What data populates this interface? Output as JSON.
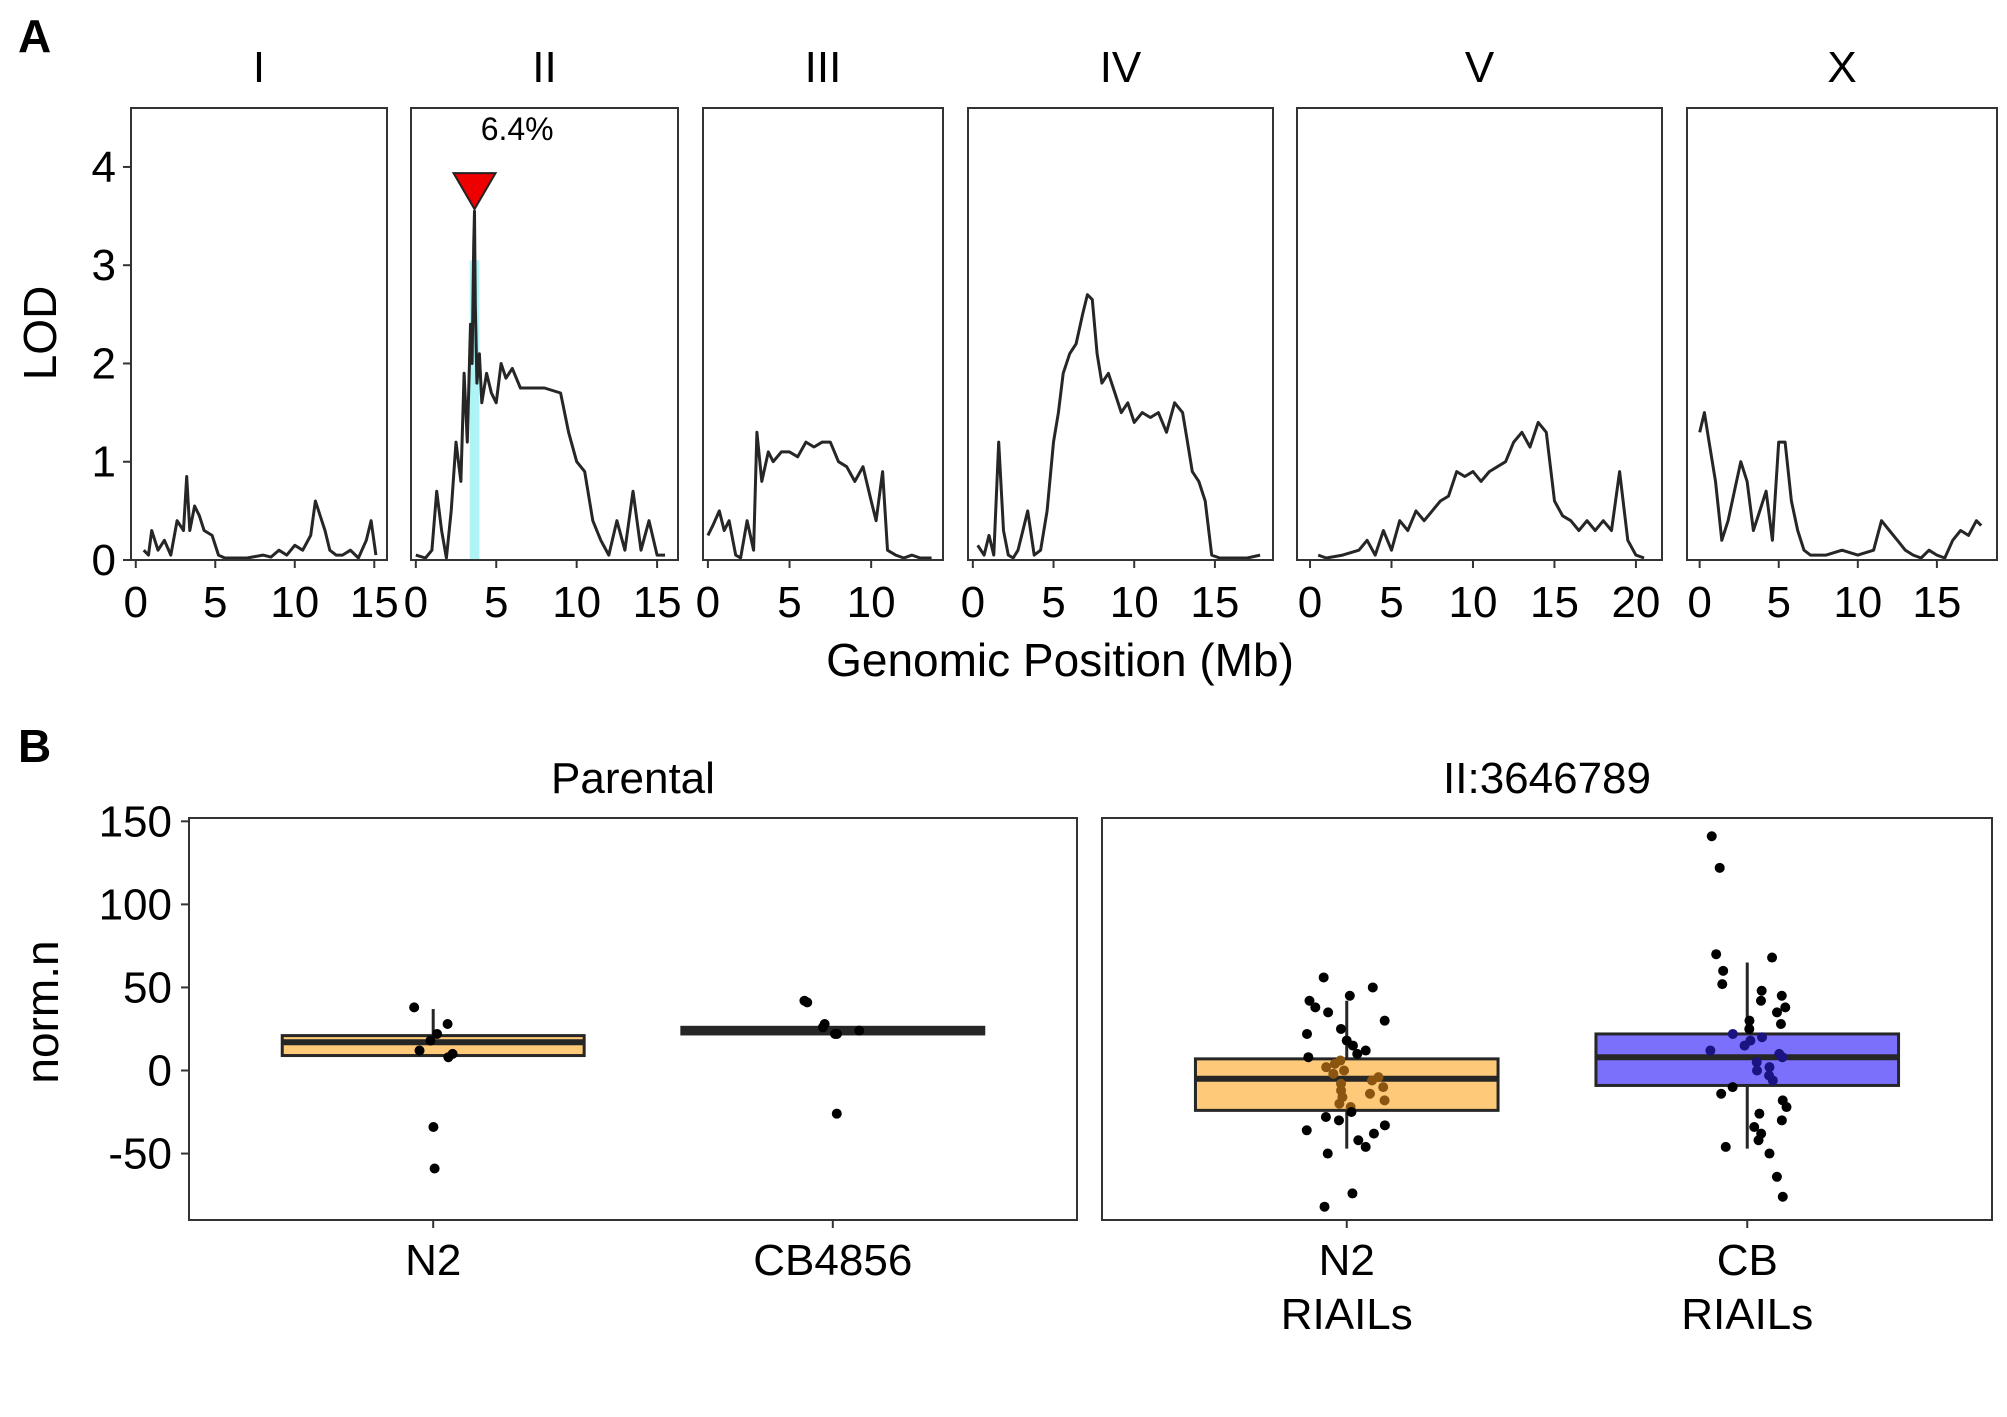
{
  "panel_tags": {
    "a": "A",
    "b": "B"
  },
  "chart_data": [
    {
      "type": "line",
      "panel": "A",
      "ylabel": "LOD",
      "xlabel": "Genomic Position (Mb)",
      "ylim": [
        0,
        4.6
      ],
      "yticks": [
        0,
        1,
        2,
        3,
        4
      ],
      "grid": false,
      "line_color": "#262626",
      "facets": [
        {
          "name": "I",
          "xlim": [
            -0.3,
            15.8
          ],
          "xticks": [
            0,
            5,
            10,
            15
          ],
          "tick_labels": [
            "0",
            "5",
            "10",
            "15"
          ],
          "x": [
            0.5,
            0.8,
            1.0,
            1.4,
            1.8,
            2.2,
            2.6,
            3.0,
            3.2,
            3.4,
            3.7,
            4.0,
            4.3,
            4.8,
            5.2,
            5.6,
            6.0,
            7.0,
            8.0,
            8.5,
            9.0,
            9.5,
            10.0,
            10.5,
            11.0,
            11.3,
            11.6,
            11.9,
            12.2,
            12.6,
            13.0,
            13.5,
            14.0,
            14.5,
            14.8,
            15.1
          ],
          "y": [
            0.1,
            0.05,
            0.3,
            0.1,
            0.2,
            0.05,
            0.4,
            0.3,
            0.85,
            0.3,
            0.55,
            0.45,
            0.3,
            0.25,
            0.05,
            0.02,
            0.02,
            0.02,
            0.05,
            0.03,
            0.1,
            0.05,
            0.15,
            0.1,
            0.25,
            0.6,
            0.45,
            0.3,
            0.1,
            0.05,
            0.05,
            0.1,
            0.02,
            0.2,
            0.4,
            0.05
          ]
        },
        {
          "name": "II",
          "xlim": [
            -0.3,
            16.3
          ],
          "xticks": [
            0,
            5,
            10,
            15
          ],
          "tick_labels": [
            "0",
            "5",
            "10",
            "15"
          ],
          "x": [
            0.0,
            0.6,
            1.0,
            1.3,
            1.6,
            1.9,
            2.2,
            2.5,
            2.8,
            3.0,
            3.2,
            3.4,
            3.5,
            3.6,
            3.65,
            3.7,
            3.8,
            3.95,
            4.1,
            4.4,
            4.7,
            5.0,
            5.3,
            5.6,
            6.0,
            6.5,
            7.0,
            7.5,
            8.0,
            9.0,
            9.5,
            10.0,
            10.5,
            11.0,
            11.5,
            12.0,
            12.5,
            13.0,
            13.5,
            14.0,
            14.5,
            15.0,
            15.5
          ],
          "y": [
            0.05,
            0.02,
            0.1,
            0.7,
            0.3,
            0.02,
            0.5,
            1.2,
            0.8,
            1.9,
            1.2,
            2.4,
            2.0,
            3.2,
            3.55,
            2.6,
            1.8,
            2.1,
            1.6,
            1.9,
            1.7,
            1.6,
            2.0,
            1.85,
            1.95,
            1.75,
            1.75,
            1.75,
            1.75,
            1.7,
            1.3,
            1.0,
            0.9,
            0.4,
            0.2,
            0.05,
            0.4,
            0.1,
            0.7,
            0.1,
            0.4,
            0.05,
            0.05
          ]
        },
        {
          "name": "III",
          "xlim": [
            -0.3,
            14.4
          ],
          "xticks": [
            0,
            5,
            10
          ],
          "tick_labels": [
            "0",
            "5",
            "10"
          ],
          "x": [
            0.0,
            0.3,
            0.7,
            1.0,
            1.3,
            1.7,
            2.0,
            2.4,
            2.8,
            3.0,
            3.3,
            3.7,
            4.0,
            4.5,
            5.0,
            5.5,
            6.0,
            6.5,
            7.0,
            7.5,
            8.0,
            8.5,
            9.0,
            9.5,
            10.0,
            10.3,
            10.7,
            11.0,
            11.5,
            12.0,
            12.5,
            13.0,
            13.7
          ],
          "y": [
            0.25,
            0.35,
            0.5,
            0.3,
            0.4,
            0.05,
            0.02,
            0.4,
            0.1,
            1.3,
            0.8,
            1.1,
            1.0,
            1.1,
            1.1,
            1.05,
            1.2,
            1.15,
            1.2,
            1.2,
            1.0,
            0.95,
            0.8,
            0.95,
            0.6,
            0.4,
            0.9,
            0.1,
            0.05,
            0.02,
            0.05,
            0.02,
            0.02
          ]
        },
        {
          "name": "IV",
          "xlim": [
            -0.3,
            18.6
          ],
          "xticks": [
            0,
            5,
            10,
            15
          ],
          "tick_labels": [
            "0",
            "5",
            "10",
            "15"
          ],
          "x": [
            0.3,
            0.7,
            1.0,
            1.3,
            1.6,
            1.9,
            2.2,
            2.5,
            2.8,
            3.1,
            3.4,
            3.8,
            4.2,
            4.6,
            5.0,
            5.3,
            5.6,
            6.0,
            6.4,
            6.8,
            7.1,
            7.4,
            7.7,
            8.0,
            8.4,
            8.8,
            9.2,
            9.6,
            10.0,
            10.5,
            11.0,
            11.5,
            12.0,
            12.5,
            13.0,
            13.3,
            13.6,
            14.0,
            14.4,
            14.8,
            15.3,
            16.0,
            17.0,
            17.8
          ],
          "y": [
            0.15,
            0.05,
            0.25,
            0.05,
            1.2,
            0.3,
            0.05,
            0.02,
            0.1,
            0.3,
            0.5,
            0.05,
            0.1,
            0.5,
            1.2,
            1.5,
            1.9,
            2.1,
            2.2,
            2.5,
            2.7,
            2.65,
            2.1,
            1.8,
            1.9,
            1.7,
            1.5,
            1.6,
            1.4,
            1.5,
            1.45,
            1.5,
            1.3,
            1.6,
            1.5,
            1.2,
            0.9,
            0.8,
            0.6,
            0.05,
            0.02,
            0.02,
            0.02,
            0.05
          ]
        },
        {
          "name": "V",
          "xlim": [
            -0.8,
            21.6
          ],
          "xticks": [
            0,
            5,
            10,
            15,
            20
          ],
          "tick_labels": [
            "0",
            "5",
            "10",
            "15",
            "20"
          ],
          "x": [
            0.5,
            1.0,
            2.0,
            3.0,
            3.5,
            4.0,
            4.5,
            5.0,
            5.5,
            6.0,
            6.5,
            7.0,
            7.5,
            8.0,
            8.5,
            9.0,
            9.5,
            10.0,
            10.5,
            11.0,
            11.5,
            12.0,
            12.5,
            13.0,
            13.5,
            14.0,
            14.5,
            15.0,
            15.5,
            16.0,
            16.5,
            17.0,
            17.5,
            18.0,
            18.5,
            19.0,
            19.5,
            20.0,
            20.5
          ],
          "y": [
            0.05,
            0.02,
            0.05,
            0.1,
            0.2,
            0.05,
            0.3,
            0.1,
            0.4,
            0.3,
            0.5,
            0.4,
            0.5,
            0.6,
            0.65,
            0.9,
            0.85,
            0.9,
            0.8,
            0.9,
            0.95,
            1.0,
            1.2,
            1.3,
            1.15,
            1.4,
            1.3,
            0.6,
            0.45,
            0.4,
            0.3,
            0.4,
            0.3,
            0.4,
            0.3,
            0.9,
            0.2,
            0.05,
            0.02
          ]
        },
        {
          "name": "X",
          "xlim": [
            -0.8,
            18.8
          ],
          "xticks": [
            0,
            5,
            10,
            15
          ],
          "tick_labels": [
            "0",
            "5",
            "10",
            "15"
          ],
          "x": [
            0.0,
            0.3,
            0.6,
            1.0,
            1.4,
            1.8,
            2.2,
            2.6,
            3.0,
            3.4,
            3.8,
            4.2,
            4.6,
            5.0,
            5.4,
            5.8,
            6.2,
            6.6,
            7.0,
            8.0,
            9.0,
            10.0,
            11.0,
            11.5,
            12.0,
            12.5,
            13.0,
            13.5,
            14.0,
            14.5,
            15.0,
            15.5,
            16.0,
            16.5,
            17.0,
            17.5,
            17.8
          ],
          "y": [
            1.3,
            1.5,
            1.2,
            0.8,
            0.2,
            0.4,
            0.7,
            1.0,
            0.8,
            0.3,
            0.5,
            0.7,
            0.2,
            1.2,
            1.2,
            0.6,
            0.3,
            0.1,
            0.05,
            0.05,
            0.1,
            0.05,
            0.1,
            0.4,
            0.3,
            0.2,
            0.1,
            0.05,
            0.02,
            0.1,
            0.05,
            0.02,
            0.2,
            0.3,
            0.25,
            0.4,
            0.35
          ]
        }
      ],
      "peak": {
        "facet": "II",
        "x": 3.65,
        "lod": 3.55,
        "label": "6.4%",
        "marker_color": "#ee0000",
        "interval": [
          3.35,
          3.95
        ],
        "interval_color": "#aff3f6"
      }
    },
    {
      "type": "box",
      "panel": "B",
      "ylabel": "norm.n",
      "ylim": [
        -90,
        152
      ],
      "yticks": [
        150,
        100,
        50,
        0,
        -50
      ],
      "tick_labels": [
        "150",
        "100",
        "50",
        "0",
        "-50"
      ],
      "grid": false,
      "facets": [
        {
          "name": "Parental",
          "groups": [
            {
              "label": [
                "N2"
              ],
              "color": "#fec978",
              "q1": 9,
              "median": 17,
              "q3": 21,
              "whisker_low": 9,
              "whisker_high": 37,
              "points": [
                38,
                28,
                22,
                18,
                12,
                10,
                8,
                -34,
                -59
              ]
            },
            {
              "label": [
                "CB4856"
              ],
              "color": "#262626",
              "q1": 22,
              "median": 24,
              "q3": 26,
              "whisker_low": 22,
              "whisker_high": 26,
              "points": [
                42,
                41,
                28,
                26,
                24,
                22,
                22,
                -26
              ]
            }
          ]
        },
        {
          "name": "II:3646789",
          "groups": [
            {
              "label": [
                "N2",
                "RIAILs"
              ],
              "color": "#fec978",
              "dot_color": "#8a5510",
              "q1": -24,
              "median": -5,
              "q3": 7,
              "whisker_low": -47,
              "whisker_high": 42,
              "points": [
                56,
                50,
                45,
                42,
                38,
                35,
                30,
                25,
                22,
                18,
                15,
                12,
                10,
                8,
                6,
                4,
                2,
                0,
                -2,
                -4,
                -6,
                -8,
                -10,
                -12,
                -14,
                -16,
                -18,
                -20,
                -22,
                -25,
                -28,
                -30,
                -33,
                -36,
                -38,
                -42,
                -46,
                -50,
                -74,
                -82
              ]
            },
            {
              "label": [
                "CB",
                "RIAILs"
              ],
              "color": "#7a70fb",
              "dot_color": "#1a1380",
              "q1": -9,
              "median": 8,
              "q3": 22,
              "whisker_low": -47,
              "whisker_high": 65,
              "points": [
                141,
                122,
                70,
                68,
                60,
                52,
                48,
                45,
                42,
                38,
                35,
                30,
                28,
                25,
                22,
                20,
                18,
                15,
                12,
                10,
                8,
                5,
                2,
                0,
                -3,
                -6,
                -10,
                -14,
                -18,
                -22,
                -26,
                -30,
                -34,
                -38,
                -42,
                -46,
                -50,
                -64,
                -76
              ]
            }
          ]
        }
      ]
    }
  ]
}
